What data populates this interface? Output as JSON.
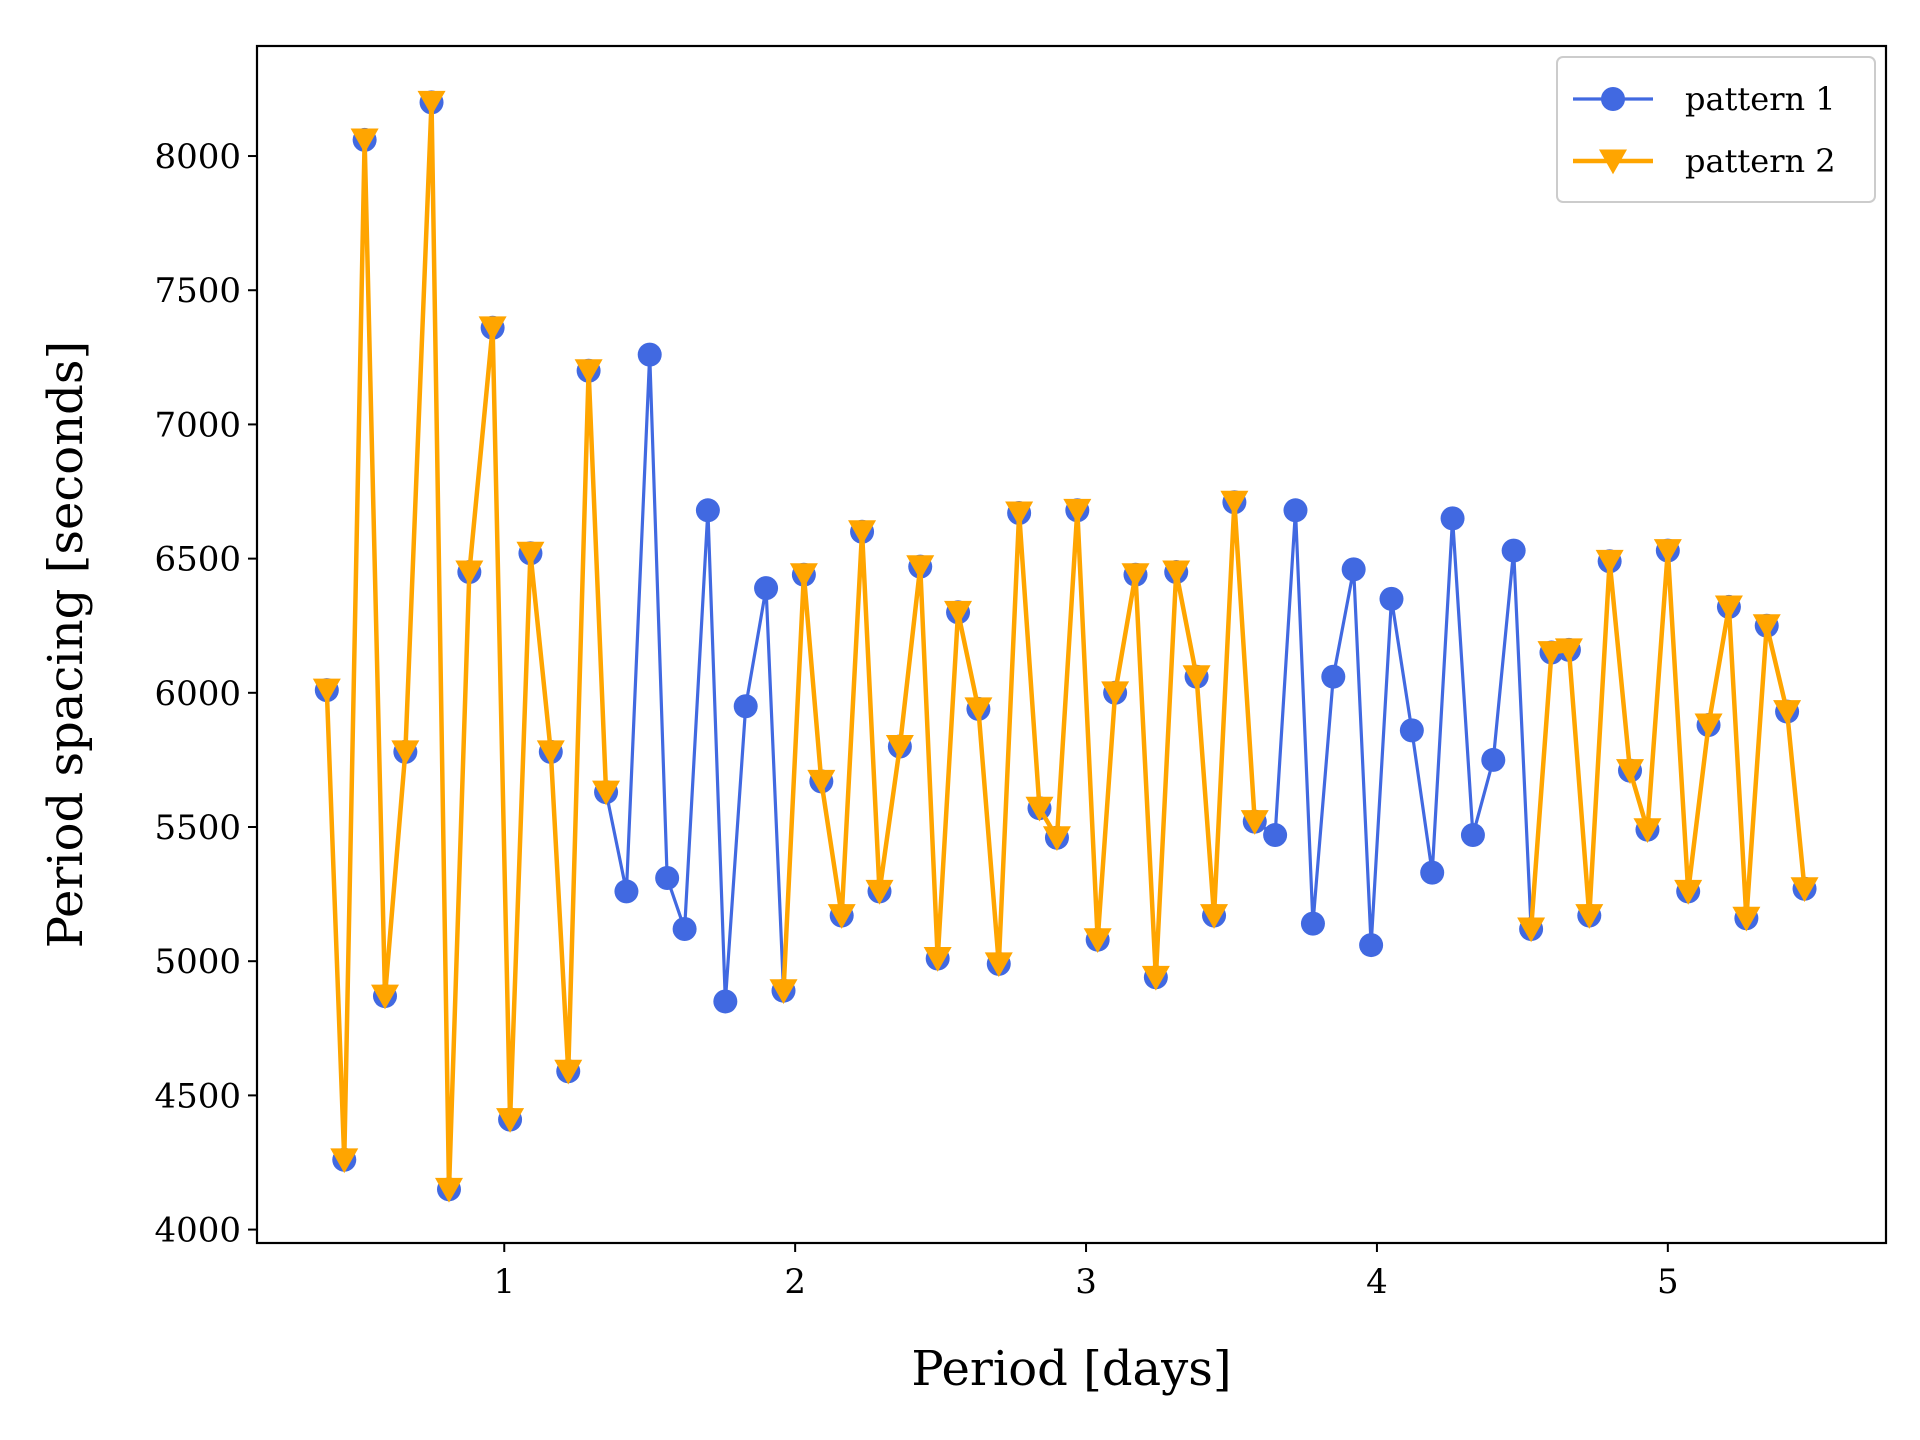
{
  "chart_data": {
    "type": "line",
    "title": "",
    "xlabel": "Period [days]",
    "ylabel": "Period spacing [seconds]",
    "xlim": [
      0.15,
      5.75
    ],
    "ylim": [
      3950,
      8410
    ],
    "xticks": [
      1,
      2,
      3,
      4,
      5
    ],
    "yticks": [
      4000,
      4500,
      5000,
      5500,
      6000,
      6500,
      7000,
      7500,
      8000
    ],
    "grid": false,
    "legend_position": "top-right",
    "series": [
      {
        "name": "pattern 1",
        "color": "#4169e1",
        "marker": "circle",
        "points": [
          [
            0.39,
            6010
          ],
          [
            0.45,
            4260
          ],
          [
            0.52,
            8060
          ],
          [
            0.59,
            4870
          ],
          [
            0.66,
            5780
          ],
          [
            0.75,
            8200
          ],
          [
            0.81,
            4150
          ],
          [
            0.88,
            6450
          ],
          [
            0.96,
            7360
          ],
          [
            1.02,
            4410
          ],
          [
            1.09,
            6520
          ],
          [
            1.16,
            5780
          ],
          [
            1.22,
            4590
          ],
          [
            1.29,
            7200
          ],
          [
            1.35,
            5630
          ],
          [
            1.42,
            5260
          ],
          [
            1.5,
            7260
          ],
          [
            1.56,
            5310
          ],
          [
            1.62,
            5120
          ],
          [
            1.7,
            6680
          ],
          [
            1.76,
            4850
          ],
          [
            1.83,
            5950
          ],
          [
            1.9,
            6390
          ],
          [
            1.96,
            4890
          ],
          [
            2.03,
            6440
          ],
          [
            2.09,
            5670
          ],
          [
            2.16,
            5170
          ],
          [
            2.23,
            6600
          ],
          [
            2.29,
            5260
          ],
          [
            2.36,
            5800
          ],
          [
            2.43,
            6470
          ],
          [
            2.49,
            5010
          ],
          [
            2.56,
            6300
          ],
          [
            2.63,
            5940
          ],
          [
            2.7,
            4990
          ],
          [
            2.77,
            6670
          ],
          [
            2.84,
            5570
          ],
          [
            2.9,
            5460
          ],
          [
            2.97,
            6680
          ],
          [
            3.04,
            5080
          ],
          [
            3.1,
            6000
          ],
          [
            3.17,
            6440
          ],
          [
            3.24,
            4940
          ],
          [
            3.31,
            6450
          ],
          [
            3.38,
            6060
          ],
          [
            3.44,
            5170
          ],
          [
            3.51,
            6710
          ],
          [
            3.58,
            5520
          ],
          [
            3.65,
            5470
          ],
          [
            3.72,
            6680
          ],
          [
            3.78,
            5140
          ],
          [
            3.85,
            6060
          ],
          [
            3.92,
            6460
          ],
          [
            3.98,
            5060
          ],
          [
            4.05,
            6350
          ],
          [
            4.12,
            5860
          ],
          [
            4.19,
            5330
          ],
          [
            4.26,
            6650
          ],
          [
            4.33,
            5470
          ],
          [
            4.4,
            5750
          ],
          [
            4.47,
            6530
          ],
          [
            4.53,
            5120
          ],
          [
            4.6,
            6150
          ],
          [
            4.66,
            6160
          ],
          [
            4.73,
            5170
          ],
          [
            4.8,
            6490
          ],
          [
            4.87,
            5710
          ],
          [
            4.93,
            5490
          ],
          [
            5.0,
            6530
          ],
          [
            5.07,
            5260
          ],
          [
            5.14,
            5880
          ],
          [
            5.21,
            6320
          ],
          [
            5.27,
            5160
          ],
          [
            5.34,
            6250
          ],
          [
            5.41,
            5930
          ],
          [
            5.47,
            5270
          ]
        ]
      },
      {
        "name": "pattern 2",
        "color": "#ffa500",
        "marker": "triangle-down",
        "segments": [
          [
            [
              0.39,
              6010
            ],
            [
              0.45,
              4260
            ],
            [
              0.52,
              8060
            ],
            [
              0.59,
              4870
            ],
            [
              0.66,
              5780
            ],
            [
              0.75,
              8200
            ],
            [
              0.81,
              4150
            ],
            [
              0.88,
              6450
            ],
            [
              0.96,
              7360
            ],
            [
              1.02,
              4410
            ],
            [
              1.09,
              6520
            ],
            [
              1.16,
              5780
            ],
            [
              1.22,
              4590
            ],
            [
              1.29,
              7200
            ],
            [
              1.35,
              5630
            ]
          ],
          [
            [
              1.96,
              4890
            ],
            [
              2.03,
              6440
            ],
            [
              2.09,
              5670
            ],
            [
              2.16,
              5170
            ],
            [
              2.23,
              6600
            ],
            [
              2.29,
              5260
            ],
            [
              2.36,
              5800
            ],
            [
              2.43,
              6470
            ],
            [
              2.49,
              5010
            ],
            [
              2.56,
              6300
            ],
            [
              2.63,
              5940
            ],
            [
              2.7,
              4990
            ],
            [
              2.77,
              6670
            ],
            [
              2.84,
              5570
            ],
            [
              2.9,
              5460
            ],
            [
              2.97,
              6680
            ],
            [
              3.04,
              5080
            ],
            [
              3.1,
              6000
            ],
            [
              3.17,
              6440
            ],
            [
              3.24,
              4940
            ],
            [
              3.31,
              6450
            ],
            [
              3.38,
              6060
            ],
            [
              3.44,
              5170
            ],
            [
              3.51,
              6710
            ],
            [
              3.58,
              5520
            ]
          ],
          [
            [
              4.53,
              5120
            ],
            [
              4.6,
              6150
            ],
            [
              4.66,
              6160
            ],
            [
              4.73,
              5170
            ],
            [
              4.8,
              6490
            ],
            [
              4.87,
              5710
            ],
            [
              4.93,
              5490
            ],
            [
              5.0,
              6530
            ],
            [
              5.07,
              5260
            ],
            [
              5.14,
              5880
            ],
            [
              5.21,
              6320
            ],
            [
              5.27,
              5160
            ],
            [
              5.34,
              6250
            ],
            [
              5.41,
              5930
            ],
            [
              5.47,
              5270
            ]
          ]
        ]
      }
    ]
  }
}
